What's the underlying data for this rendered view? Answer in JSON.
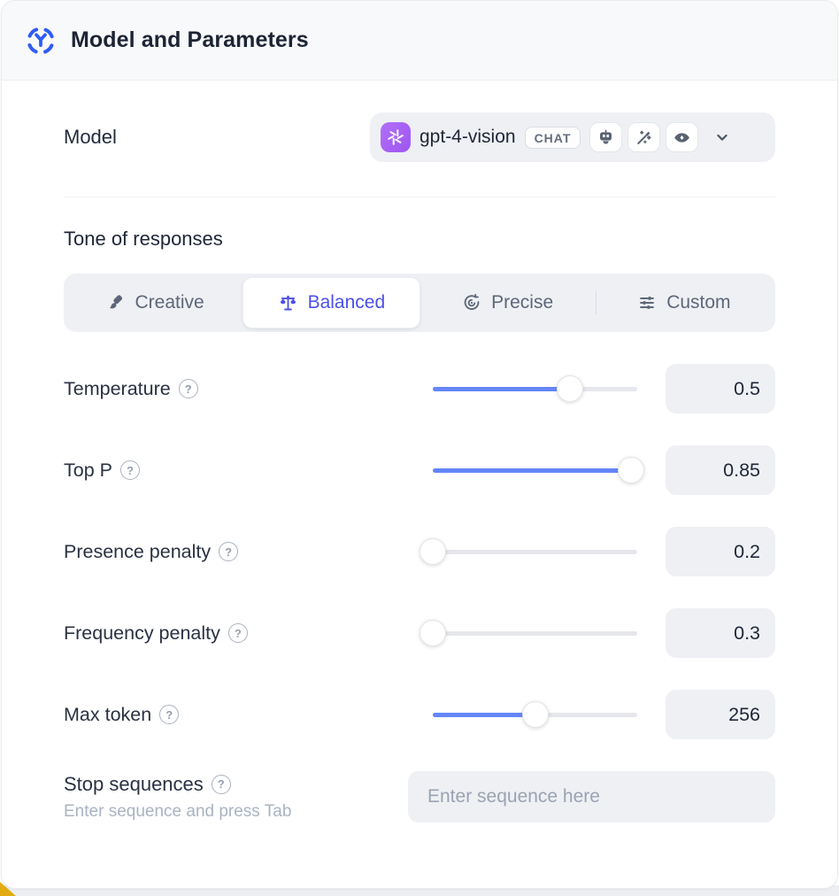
{
  "window": {
    "title": "Model and Parameters"
  },
  "model_row": {
    "label": "Model",
    "selected_model": "gpt-4-vision",
    "type_badge": "CHAT",
    "provider_icon": "openai-logo",
    "capability_icons": [
      "robot",
      "magic-wand",
      "vision-eye"
    ]
  },
  "tone": {
    "heading": "Tone of responses",
    "options": [
      {
        "label": "Creative",
        "icon": "paintbrush-icon",
        "selected": false
      },
      {
        "label": "Balanced",
        "icon": "balance-scale-icon",
        "selected": true
      },
      {
        "label": "Precise",
        "icon": "target-icon",
        "selected": false
      },
      {
        "label": "Custom",
        "icon": "sliders-icon",
        "selected": false
      }
    ]
  },
  "parameters": [
    {
      "label": "Temperature",
      "value": "0.5",
      "fill_pct": 67
    },
    {
      "label": "Top P",
      "value": "0.85",
      "fill_pct": 97
    },
    {
      "label": "Presence penalty",
      "value": "0.2",
      "fill_pct": 0
    },
    {
      "label": "Frequency penalty",
      "value": "0.3",
      "fill_pct": 0
    },
    {
      "label": "Max token",
      "value": "256",
      "fill_pct": 50
    }
  ],
  "stop_sequences": {
    "label": "Stop sequences",
    "hint": "Enter sequence and press Tab",
    "placeholder": "Enter sequence here"
  },
  "icons": {
    "help": "?"
  },
  "colors": {
    "accent_blue": "#2f5cf6",
    "slider_blue": "#6486f9",
    "selected_tab_indigo": "#4b4fe8",
    "openai_avatar_purple": "#a562f4",
    "control_bg": "#eef0f4",
    "header_bg": "#f8f9fb",
    "text_dark": "#222b3d",
    "text_gray": "#5d6778"
  }
}
